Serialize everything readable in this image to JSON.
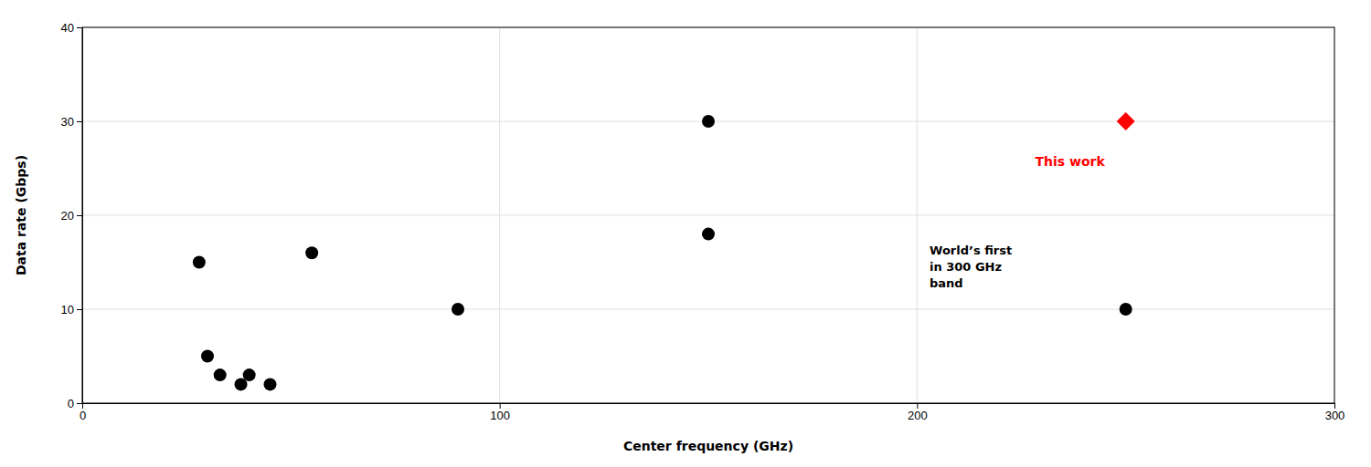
{
  "chart_data": {
    "type": "scatter",
    "xlabel": "Center frequency (GHz)",
    "ylabel": "Data rate (Gbps)",
    "series": [
      {
        "color": "#000000",
        "marker": "circle",
        "x": [
          28,
          30,
          33,
          38,
          40,
          45,
          55,
          90,
          150,
          150,
          250
        ],
        "values": [
          15,
          5,
          3,
          2,
          3,
          2,
          16,
          10,
          30,
          18,
          10
        ]
      },
      {
        "color": "#ff0000",
        "marker": "diamond",
        "x": [
          250
        ],
        "values": [
          30
        ]
      }
    ],
    "annotations": [
      {
        "text": "This work",
        "x": 245,
        "y": 26.5,
        "color": "#ff0000"
      },
      {
        "text": "World’s first\nin 300 GHz\nband",
        "x": 203,
        "y": 17
      }
    ],
    "xlim": [
      0,
      300
    ],
    "ylim": [
      0,
      40
    ],
    "xticks": [
      0,
      100,
      200,
      300
    ],
    "yticks": [
      0,
      10,
      20,
      30,
      40
    ],
    "grid": true
  }
}
